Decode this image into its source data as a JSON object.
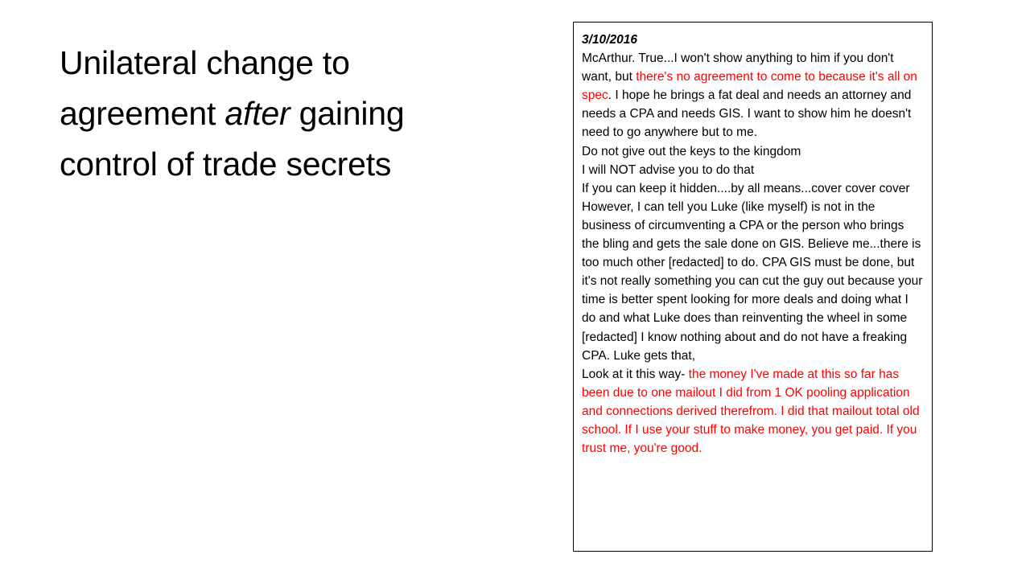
{
  "slide": {
    "title_part1": "Unilateral change to agreement ",
    "title_emphasis": "after",
    "title_part2": " gaining control of trade secrets"
  },
  "quote": {
    "date": "3/10/2016",
    "para1_black_a": "McArthur. True...I won't show anything to him if you don't want, but ",
    "para1_red": "there's no agreement to come to because it's all on spec",
    "para1_black_b": ". I hope he brings a fat deal and needs an attorney and needs a CPA and needs GIS. I want to show him he doesn't need to go anywhere but to me.",
    "line_keys": "Do not give out the keys to the kingdom",
    "line_advise": "I will NOT advise you to do that",
    "line_hidden": "If you can keep it hidden....by all means...cover cover cover",
    "para_however": "However, I can tell you Luke (like myself) is not in the business of circumventing a CPA or the person who brings the bling and gets the sale done on GIS. Believe me...there is too much other [redacted] to do. CPA GIS must be done, but it's not really something you can cut the guy out because your time is better spent looking for more deals and doing what I do and what Luke does than reinventing the wheel in some [redacted] I know nothing about and do not have a freaking CPA. Luke gets that,",
    "para_last_black": "Look at it this way- ",
    "para_last_red": "the money I've made at this so far has been due to one mailout I did from 1 OK pooling application and connections derived therefrom. I did that mailout total old school.   If I use your stuff to make money, you get paid. If you trust me, you're good."
  },
  "colors": {
    "highlight": "#ff0000",
    "text": "#000000"
  }
}
